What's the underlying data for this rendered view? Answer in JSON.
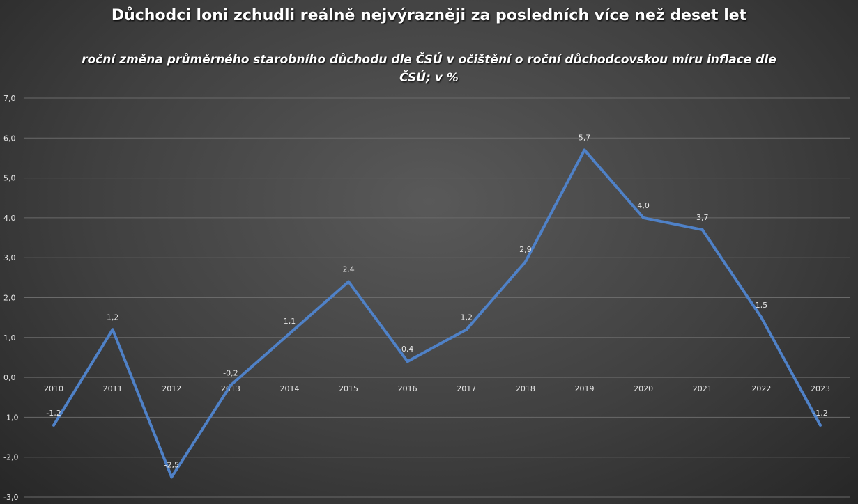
{
  "chart_data": {
    "type": "line",
    "title": "Důchodci loni zchudli reálně nejvýrazněji za posledních více než deset let",
    "subtitle": "roční změna průměrného starobního důchodu dle ČSÚ v očištění o roční důchodcovskou míru inflace dle ČSÚ; v %",
    "categories": [
      "2010",
      "2011",
      "2012",
      "2013",
      "2014",
      "2015",
      "2016",
      "2017",
      "2018",
      "2019",
      "2020",
      "2021",
      "2022",
      "2023"
    ],
    "series": [
      {
        "name": "roční změna",
        "values": [
          -1.2,
          1.2,
          -2.5,
          -0.2,
          1.1,
          2.4,
          0.4,
          1.2,
          2.9,
          5.7,
          4.0,
          3.7,
          1.5,
          -1.2
        ],
        "labels": [
          "-1,2",
          "1,2",
          "-2,5",
          "-0,2",
          "1,1",
          "2,4",
          "0,4",
          "1,2",
          "2,9",
          "5,7",
          "4,0",
          "3,7",
          "1,5",
          "-1,2"
        ]
      }
    ],
    "yticks": [
      "7,0",
      "6,0",
      "5,0",
      "4,0",
      "3,0",
      "2,0",
      "1,0",
      "0,0",
      "-1,0",
      "-2,0",
      "-3,0"
    ],
    "ylim": [
      -3,
      7
    ],
    "grid": true,
    "color": "#4f81c7"
  }
}
